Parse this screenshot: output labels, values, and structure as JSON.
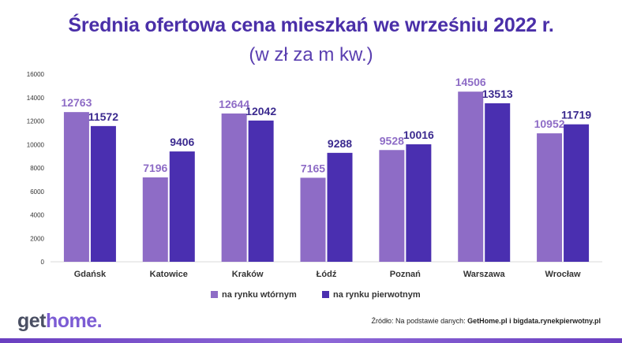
{
  "header": {
    "title": "Średnia ofertowa cena mieszkań we wrześniu 2022 r.",
    "subtitle": "(w zł za m kw.)"
  },
  "footer": {
    "logo_get": "get",
    "logo_home": "home.",
    "source_prefix": "Źródło: Na podstawie danych: ",
    "source_bold": "GetHome.pl i bigdata.rynekpierwotny.pl"
  },
  "colors": {
    "secondary": "#8e6cc6",
    "primary": "#4a2fb0",
    "secondary_label": "#8e6cc6",
    "primary_label": "#3b2a8f",
    "accent": "#6a3fc0"
  },
  "chart_data": {
    "type": "bar",
    "title": "Średnia ofertowa cena mieszkań we wrześniu 2022 r.",
    "subtitle": "(w zł za m kw.)",
    "categories": [
      "Gdańsk",
      "Katowice",
      "Kraków",
      "Łódź",
      "Poznań",
      "Warszawa",
      "Wrocław"
    ],
    "series": [
      {
        "name": "na rynku wtórnym",
        "values": [
          12763,
          7196,
          12644,
          7165,
          9528,
          14506,
          10952
        ]
      },
      {
        "name": "na rynku pierwotnym",
        "values": [
          11572,
          9406,
          12042,
          9288,
          10016,
          13513,
          11719
        ]
      }
    ],
    "ylim": [
      0,
      16000
    ],
    "yticks": [
      0,
      2000,
      4000,
      6000,
      8000,
      10000,
      12000,
      14000,
      16000
    ],
    "grid": false,
    "legend_position": "bottom-center",
    "data_labels": true
  }
}
